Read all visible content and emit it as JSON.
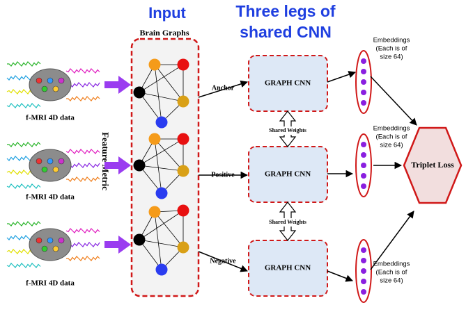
{
  "header": {
    "input_title": "Input",
    "brain_graphs": "Brain Graphs",
    "cnn_title": [
      "Three legs of",
      "shared CNN"
    ]
  },
  "inputs": [
    {
      "label": "f-MRI 4D data"
    },
    {
      "label": "f-MRI 4D data"
    },
    {
      "label": "f-MRI 4D data"
    }
  ],
  "feature_metric": "Feature Metric",
  "legs": [
    {
      "role": "Anchor",
      "cnn": "GRAPH CNN",
      "embeddings": [
        "Embeddings",
        "(Each is of",
        "size 64)"
      ]
    },
    {
      "role": "Positive",
      "cnn": "GRAPH CNN",
      "embeddings": [
        "Embeddings",
        "(Each is of",
        "size 64)"
      ]
    },
    {
      "role": "Negative",
      "cnn": "GRAPH CNN",
      "embeddings": [
        "Embeddings",
        "(Each is of",
        "size 64)"
      ]
    }
  ],
  "shared_weights": [
    "Shared Weights",
    "Shared Weights"
  ],
  "loss": "Triplet Loss"
}
